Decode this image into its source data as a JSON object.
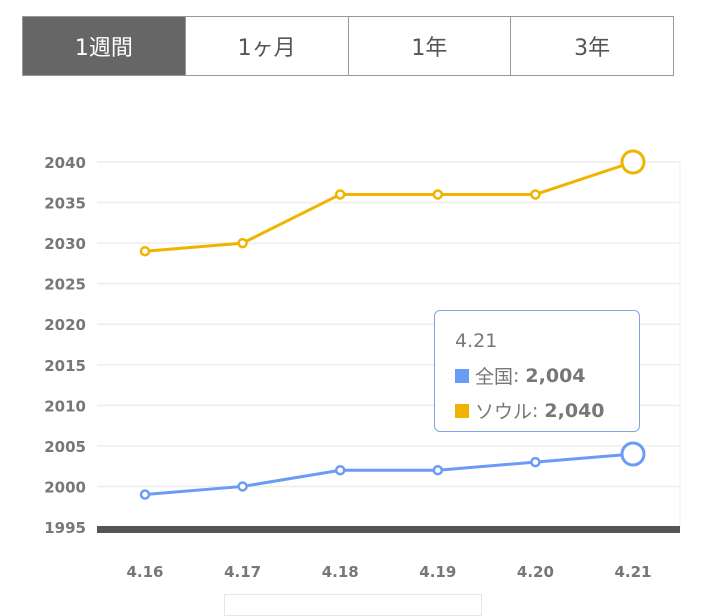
{
  "tabs": [
    {
      "label": "1週間",
      "active": true
    },
    {
      "label": "1ヶ月"
    },
    {
      "label": "1年"
    },
    {
      "label": "3年"
    }
  ],
  "chart_data": {
    "type": "line",
    "categories": [
      "4.16",
      "4.17",
      "4.18",
      "4.19",
      "4.20",
      "4.21"
    ],
    "series": [
      {
        "name": "全国",
        "color": "#6b9cf5",
        "values": [
          1999,
          2000,
          2002,
          2002,
          2003,
          2004
        ]
      },
      {
        "name": "ソウル",
        "color": "#f0b400",
        "values": [
          2029,
          2030,
          2036,
          2036,
          2036,
          2040
        ]
      }
    ],
    "ylim": [
      1995,
      2040
    ],
    "yticks": [
      1995,
      2000,
      2005,
      2010,
      2015,
      2020,
      2025,
      2030,
      2035,
      2040
    ],
    "grid": true
  },
  "tooltip": {
    "title": "4.21",
    "rows": [
      {
        "name": "全国",
        "sep": ":",
        "value": "2,004",
        "color": "#6b9cf5"
      },
      {
        "name": "ソウル",
        "sep": ":",
        "value": "2,040",
        "color": "#f0b400"
      }
    ]
  }
}
